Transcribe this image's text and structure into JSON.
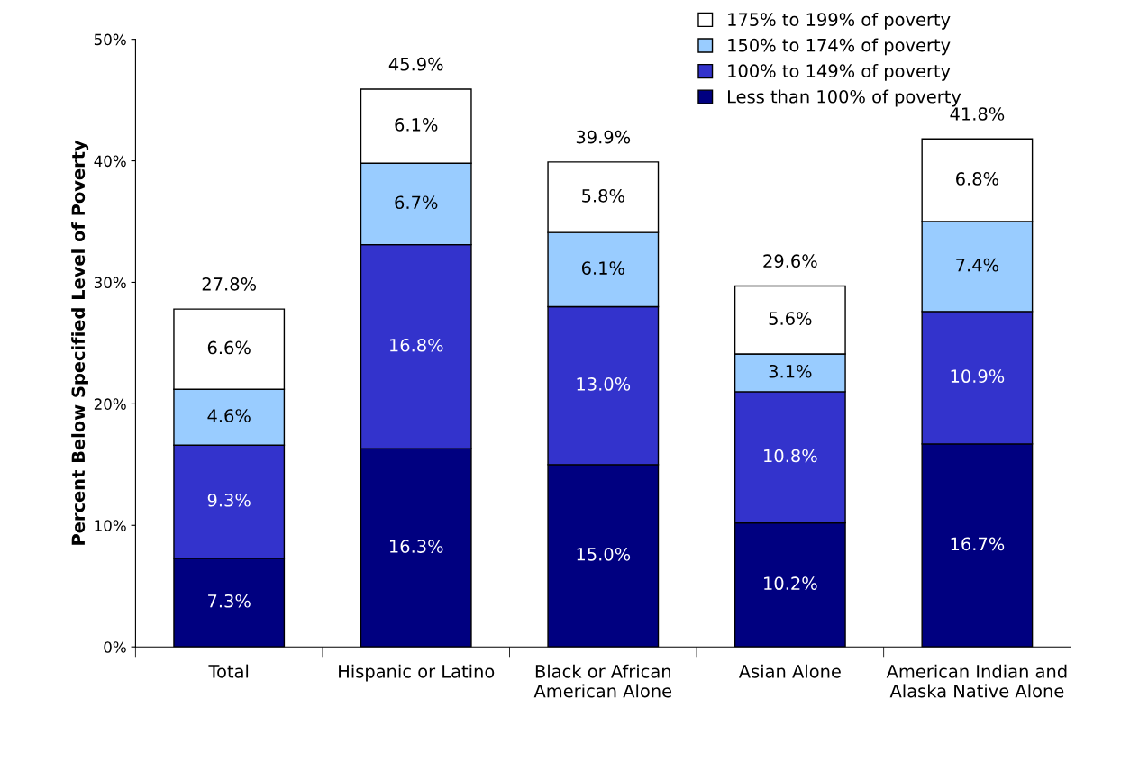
{
  "chart_data": {
    "type": "bar",
    "stacked": true,
    "ylabel": "Percent Below Specified Level of Poverty",
    "categories": [
      "Total",
      "Hispanic or Latino",
      "Black or African American Alone",
      "Asian Alone",
      "American Indian and Alaska Native Alone"
    ],
    "series": [
      {
        "name": "Less than 100% of poverty",
        "color": "#000080",
        "values": [
          7.3,
          16.3,
          15.0,
          10.2,
          16.7
        ],
        "value_labels": [
          "7.3%",
          "16.3%",
          "15.0%",
          "10.2%",
          "16.7%"
        ]
      },
      {
        "name": "100% to 149% of poverty",
        "color": "#3333cc",
        "values": [
          9.3,
          16.8,
          13.0,
          10.8,
          10.9
        ],
        "value_labels": [
          "9.3%",
          "16.8%",
          "13.0%",
          "10.8%",
          "10.9%"
        ]
      },
      {
        "name": "150% to 174% of poverty",
        "color": "#99ccff",
        "values": [
          4.6,
          6.7,
          6.1,
          3.1,
          7.4
        ],
        "value_labels": [
          "4.6%",
          "6.7%",
          "6.1%",
          "3.1%",
          "7.4%"
        ]
      },
      {
        "name": "175% to 199% of poverty",
        "color": "#ffffff",
        "values": [
          6.6,
          6.1,
          5.8,
          5.6,
          6.8
        ],
        "value_labels": [
          "6.6%",
          "6.1%",
          "5.8%",
          "5.6%",
          "6.8%"
        ]
      }
    ],
    "totals": [
      "27.8%",
      "45.9%",
      "39.9%",
      "29.6%",
      "41.8%"
    ],
    "ylim": [
      0,
      50
    ],
    "yticks": [
      {
        "value": 0,
        "label": "0%"
      },
      {
        "value": 10,
        "label": "10%"
      },
      {
        "value": 20,
        "label": "20%"
      },
      {
        "value": 30,
        "label": "30%"
      },
      {
        "value": 40,
        "label": "40%"
      },
      {
        "value": 50,
        "label": "50%"
      }
    ],
    "grid": false,
    "legend": "top right"
  }
}
